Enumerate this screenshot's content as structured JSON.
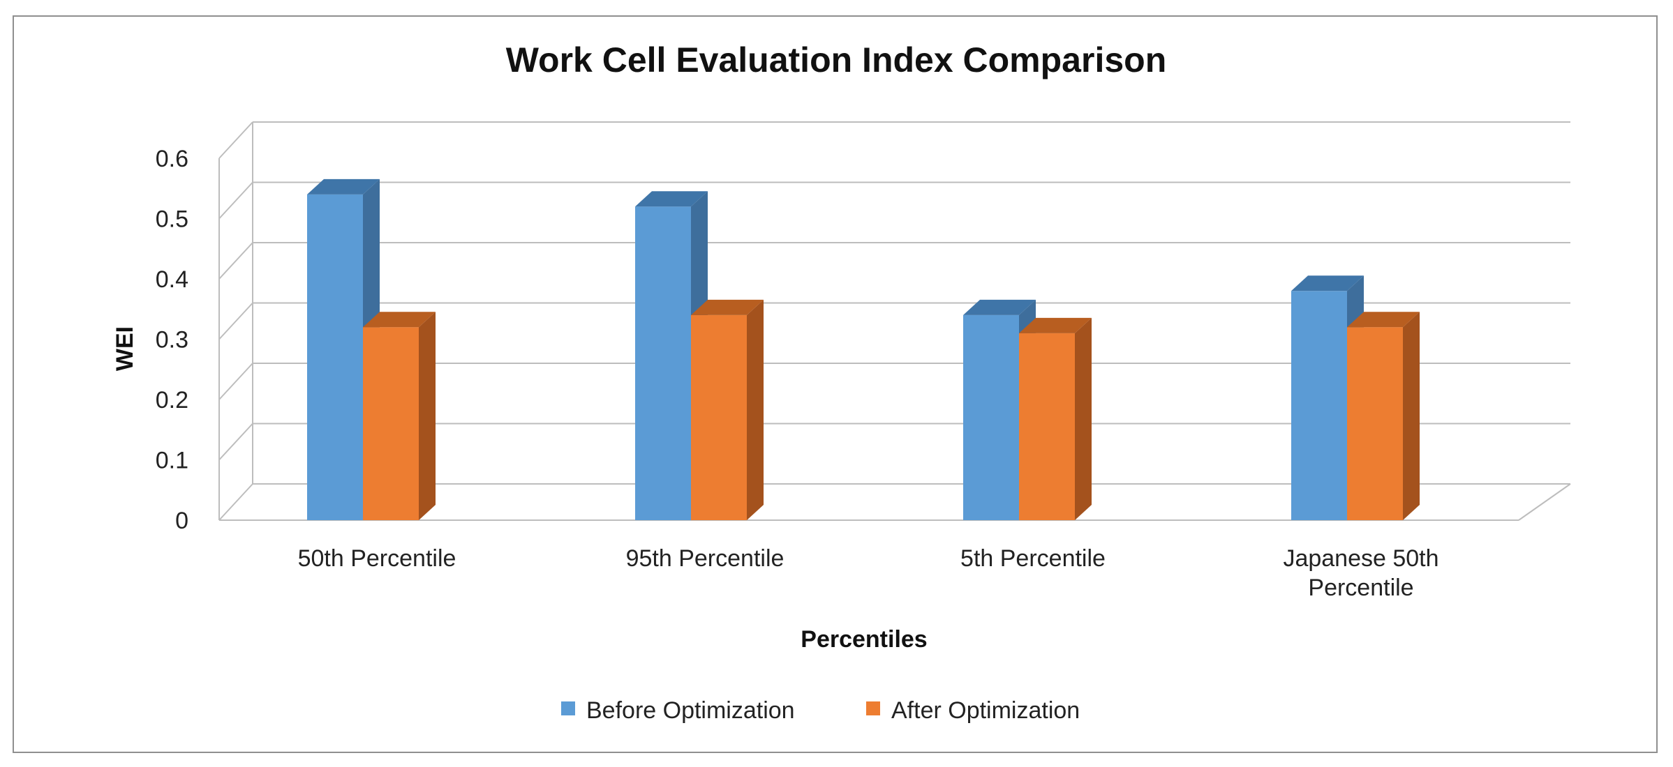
{
  "chart_data": {
    "type": "bar",
    "title": "Work Cell Evaluation Index Comparison",
    "xlabel": "Percentiles",
    "ylabel": "WEI",
    "ylim": [
      0,
      0.6
    ],
    "yticks": [
      "0",
      "0.1",
      "0.2",
      "0.3",
      "0.4",
      "0.5",
      "0.6"
    ],
    "categories": [
      [
        "50th Percentile"
      ],
      [
        "95th Percentile"
      ],
      [
        "5th Percentile"
      ],
      [
        "Japanese 50th",
        "Percentile"
      ]
    ],
    "series": [
      {
        "name": "Before Optimization",
        "values": [
          0.54,
          0.52,
          0.34,
          0.38
        ],
        "color": "#5B9BD5",
        "side_color": "#3E6E9C",
        "top_color": "#3F75A8"
      },
      {
        "name": "After Optimization",
        "values": [
          0.32,
          0.34,
          0.31,
          0.32
        ],
        "color": "#ED7D31",
        "side_color": "#A4521D",
        "top_color": "#B85E20"
      }
    ],
    "grid": true,
    "legend_position": "bottom"
  }
}
